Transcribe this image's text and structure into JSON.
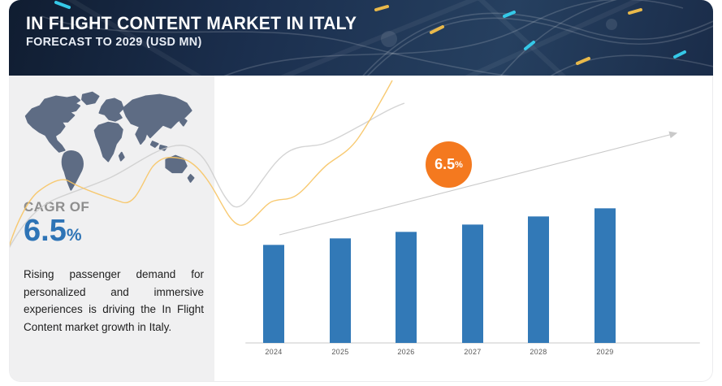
{
  "header": {
    "title": "IN FLIGHT CONTENT MARKET IN ITALY",
    "subtitle": "FORECAST TO 2029 (USD MN)"
  },
  "sidebar": {
    "cagr_label": "CAGR OF",
    "cagr_value": "6.5",
    "cagr_unit": "%",
    "description": "Rising passenger demand for personalized and immersive experiences is driving the In Flight Content market growth in Italy."
  },
  "growth_badge": {
    "value": "6.5",
    "unit": "%"
  },
  "chart_data": {
    "type": "bar",
    "title": "In Flight Content Market in Italy — Forecast to 2029 (USD MN)",
    "categories": [
      "2024",
      "2025",
      "2026",
      "2027",
      "2028",
      "2029"
    ],
    "values": [
      100,
      106.5,
      113.4,
      120.8,
      128.7,
      137.1
    ],
    "values_note": "Bars carry no numeric labels; values are a relative index (2024 = 100) consistent with the stated 6.5% CAGR",
    "cagr_percent": 6.5,
    "xlabel": "",
    "ylabel": "USD MN",
    "legend": false,
    "grid": false,
    "bar_color": "#3279b7",
    "axis_label_color": "#595959"
  },
  "colors": {
    "header_bg": "#1d3152",
    "accent_blue": "#2e74b6",
    "accent_orange": "#f4791f",
    "sidebar_bg": "#f0f0f1",
    "map_fill": "#5e6c84",
    "curve_gray": "#cccccc",
    "curve_yellow": "#f7c463",
    "arrow_gray": "#c9c9c9"
  }
}
